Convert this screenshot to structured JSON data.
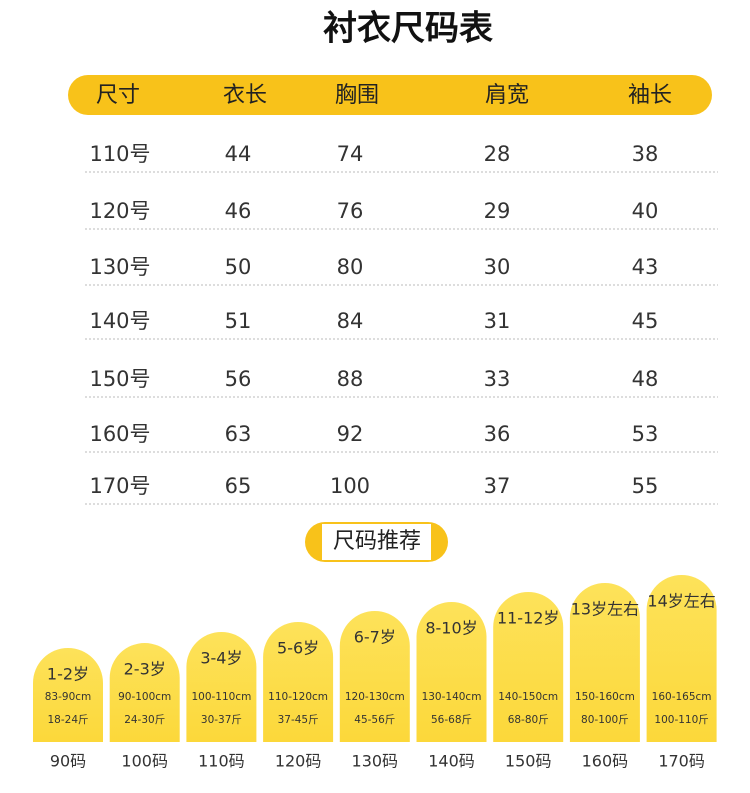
{
  "header": {
    "title": "衬衣尺码表"
  },
  "table": {
    "columns": [
      "尺寸",
      "衣长",
      "胸围",
      "肩宽",
      "袖长"
    ],
    "rows": [
      [
        "110号",
        44,
        74,
        28,
        38
      ],
      [
        "120号",
        46,
        76,
        29,
        40
      ],
      [
        "130号",
        50,
        80,
        30,
        43
      ],
      [
        "140号",
        51,
        84,
        31,
        45
      ],
      [
        "150号",
        56,
        88,
        33,
        48
      ],
      [
        "160号",
        63,
        92,
        36,
        53
      ],
      [
        "170号",
        65,
        100,
        37,
        55
      ]
    ]
  },
  "recommend": {
    "title": "尺码推荐",
    "cards": [
      {
        "age": "1-2岁",
        "height": "83-90cm",
        "weight": "18-24斤",
        "size": "90码"
      },
      {
        "age": "2-3岁",
        "height": "90-100cm",
        "weight": "24-30斤",
        "size": "100码"
      },
      {
        "age": "3-4岁",
        "height": "100-110cm",
        "weight": "30-37斤",
        "size": "110码"
      },
      {
        "age": "5-6岁",
        "height": "110-120cm",
        "weight": "37-45斤",
        "size": "120码"
      },
      {
        "age": "6-7岁",
        "height": "120-130cm",
        "weight": "45-56斤",
        "size": "130码"
      },
      {
        "age": "8-10岁",
        "height": "130-140cm",
        "weight": "56-68斤",
        "size": "140码"
      },
      {
        "age": "11-12岁",
        "height": "140-150cm",
        "weight": "68-80斤",
        "size": "150码"
      },
      {
        "age": "13岁左右",
        "height": "150-160cm",
        "weight": "80-100斤",
        "size": "160码"
      },
      {
        "age": "14岁左右",
        "height": "160-165cm",
        "weight": "100-110斤",
        "size": "170码"
      }
    ]
  }
}
